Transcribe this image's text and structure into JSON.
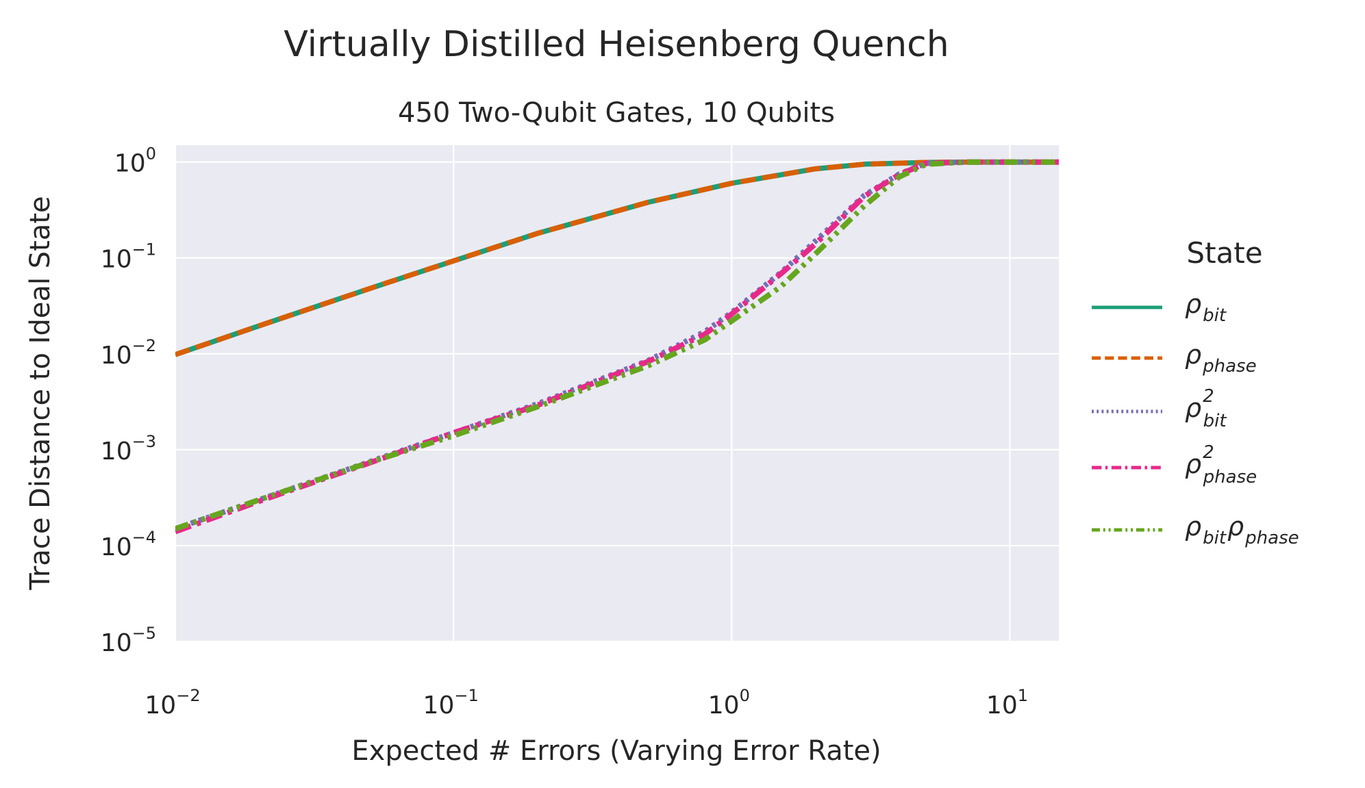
{
  "chart_data": {
    "type": "line",
    "title": "Virtually Distilled Heisenberg Quench",
    "subtitle": "450 Two-Qubit Gates, 10 Qubits",
    "xlabel": "Expected # Errors (Varying Error Rate)",
    "ylabel": "Trace Distance to Ideal State",
    "xscale": "log",
    "yscale": "log",
    "xlim": [
      0.01,
      15
    ],
    "ylim": [
      1e-05,
      1.5
    ],
    "x_ticks": [
      {
        "base": "10",
        "exp": "−2",
        "value": 0.01
      },
      {
        "base": "10",
        "exp": "−1",
        "value": 0.1
      },
      {
        "base": "10",
        "exp": "0",
        "value": 1
      },
      {
        "base": "10",
        "exp": "1",
        "value": 10
      }
    ],
    "y_ticks": [
      {
        "base": "10",
        "exp": "0",
        "value": 1
      },
      {
        "base": "10",
        "exp": "−1",
        "value": 0.1
      },
      {
        "base": "10",
        "exp": "−2",
        "value": 0.01
      },
      {
        "base": "10",
        "exp": "−3",
        "value": 0.001
      },
      {
        "base": "10",
        "exp": "−4",
        "value": 0.0001
      },
      {
        "base": "10",
        "exp": "−5",
        "value": 1e-05
      }
    ],
    "grid": true,
    "legend_title": "State",
    "legend_position": "right",
    "series": [
      {
        "name": "ρbit",
        "label_main": "ρ",
        "label_sub": "bit",
        "label_sup": "",
        "color": "#1b9e77",
        "dash": "solid",
        "x": [
          0.01,
          0.02,
          0.05,
          0.1,
          0.2,
          0.5,
          1,
          2,
          3,
          5,
          7,
          10,
          15
        ],
        "y": [
          0.0098,
          0.0196,
          0.048,
          0.093,
          0.18,
          0.38,
          0.6,
          0.85,
          0.95,
          0.99,
          1.0,
          1.0,
          1.0
        ]
      },
      {
        "name": "ρphase",
        "label_main": "ρ",
        "label_sub": "phase",
        "label_sup": "",
        "color": "#d95f02",
        "dash": "dashed",
        "x": [
          0.01,
          0.02,
          0.05,
          0.1,
          0.2,
          0.5,
          1,
          2,
          3,
          5,
          7,
          10,
          15
        ],
        "y": [
          0.0098,
          0.0196,
          0.048,
          0.093,
          0.18,
          0.38,
          0.6,
          0.85,
          0.95,
          0.99,
          1.0,
          1.0,
          1.0
        ]
      },
      {
        "name": "ρ2bit",
        "label_main": "ρ",
        "label_sub": "bit",
        "label_sup": "2",
        "color": "#7570b3",
        "dash": "dotted",
        "x": [
          0.01,
          0.02,
          0.05,
          0.1,
          0.2,
          0.5,
          0.8,
          1,
          1.5,
          2,
          3,
          4,
          5,
          7,
          10,
          15
        ],
        "y": [
          0.00015,
          0.0003,
          0.00075,
          0.0015,
          0.003,
          0.0085,
          0.017,
          0.027,
          0.07,
          0.15,
          0.45,
          0.75,
          0.97,
          1.0,
          1.0,
          1.0
        ]
      },
      {
        "name": "ρ2phase",
        "label_main": "ρ",
        "label_sub": "phase",
        "label_sup": "2",
        "color": "#e7298a",
        "dash": "dashdot",
        "x": [
          0.01,
          0.02,
          0.05,
          0.1,
          0.2,
          0.5,
          0.8,
          1,
          1.5,
          2,
          3,
          4,
          5,
          7,
          10,
          15
        ],
        "y": [
          0.00014,
          0.00029,
          0.00073,
          0.0015,
          0.0029,
          0.0083,
          0.016,
          0.026,
          0.068,
          0.14,
          0.44,
          0.74,
          0.97,
          1.0,
          1.0,
          1.0
        ]
      },
      {
        "name": "ρbitρphase",
        "label_main": "ρ",
        "label_sub": "bit",
        "label_main2": "ρ",
        "label_sub2": "phase",
        "label_sup": "",
        "color": "#66a61e",
        "dash": "dashdotdot",
        "x": [
          0.01,
          0.02,
          0.05,
          0.1,
          0.2,
          0.5,
          0.8,
          1,
          1.5,
          2,
          3,
          4,
          5,
          7,
          10,
          15
        ],
        "y": [
          0.00015,
          0.0003,
          0.00074,
          0.0014,
          0.0028,
          0.0075,
          0.014,
          0.022,
          0.05,
          0.11,
          0.35,
          0.7,
          0.95,
          1.0,
          1.0,
          1.0
        ]
      }
    ]
  }
}
